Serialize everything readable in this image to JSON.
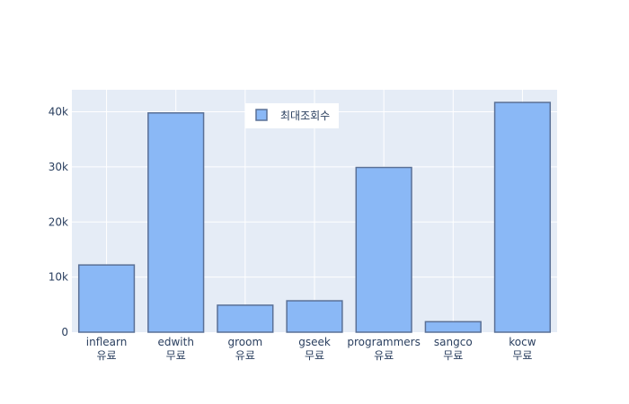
{
  "chart_data": {
    "type": "bar",
    "categories": [
      "inflearn\n유료",
      "edwith\n무료",
      "groom\n유료",
      "gseek\n무료",
      "programmers\n유료",
      "sangco\n무료",
      "kocw\n무료"
    ],
    "series": [
      {
        "name": "최대조회수",
        "values": [
          12200,
          39800,
          4900,
          5700,
          29900,
          1900,
          41700
        ]
      }
    ],
    "title": "",
    "xlabel": "",
    "ylabel": "",
    "ylim": [
      0,
      44000
    ],
    "yticks": [
      0,
      10000,
      20000,
      30000,
      40000
    ],
    "ytick_labels": [
      "0",
      "10k",
      "20k",
      "30k",
      "40k"
    ],
    "grid": true,
    "legend": {
      "placement": "top-center",
      "visible": true
    },
    "colors": {
      "bar_fill": "#8ab8f6",
      "bar_stroke": "#5a7096",
      "plot_bg": "#e5ecf6",
      "grid": "#ffffff",
      "text": "#2a3f5f"
    }
  }
}
